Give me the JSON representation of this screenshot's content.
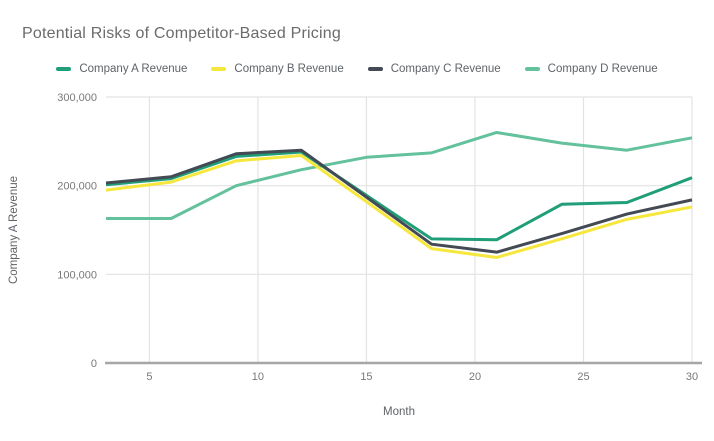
{
  "chart_data": {
    "type": "line",
    "title": "Potential Risks of Competitor-Based Pricing",
    "xlabel": "Month",
    "ylabel": "Company A Revenue",
    "x": [
      3,
      6,
      9,
      12,
      15,
      18,
      21,
      24,
      27,
      30
    ],
    "xlim": [
      3,
      30
    ],
    "ylim": [
      0,
      300000
    ],
    "x_ticks": [
      5,
      10,
      15,
      20,
      25,
      30
    ],
    "y_ticks": [
      0,
      100000,
      200000,
      300000
    ],
    "y_tick_labels": [
      "0",
      "100,000",
      "200,000",
      "300,000"
    ],
    "grid": true,
    "legend_position": "top",
    "series": [
      {
        "name": "Company A Revenue",
        "color": "#1f9e78",
        "values": [
          201000,
          208000,
          233000,
          238000,
          189000,
          140000,
          139000,
          179000,
          181000,
          209000
        ]
      },
      {
        "name": "Company B Revenue",
        "color": "#f6e73c",
        "values": [
          195000,
          204000,
          228000,
          234000,
          182000,
          129000,
          119000,
          140000,
          162000,
          176000
        ]
      },
      {
        "name": "Company C Revenue",
        "color": "#434a54",
        "values": [
          203000,
          210000,
          236000,
          240000,
          187000,
          134000,
          125000,
          146000,
          168000,
          184000
        ]
      },
      {
        "name": "Company D Revenue",
        "color": "#63c19c",
        "values": [
          163000,
          163000,
          200000,
          218000,
          232000,
          237000,
          260000,
          248000,
          240000,
          254000
        ]
      }
    ],
    "z_order": [
      3,
      0,
      1,
      2
    ]
  },
  "colors": {
    "background": "#ffffff",
    "grid": "#e3e3e3",
    "axis_line": "#a6a6a6",
    "tick_text": "#787878",
    "title_text": "#6b6b6b",
    "axis_title_text": "#5f6368"
  }
}
